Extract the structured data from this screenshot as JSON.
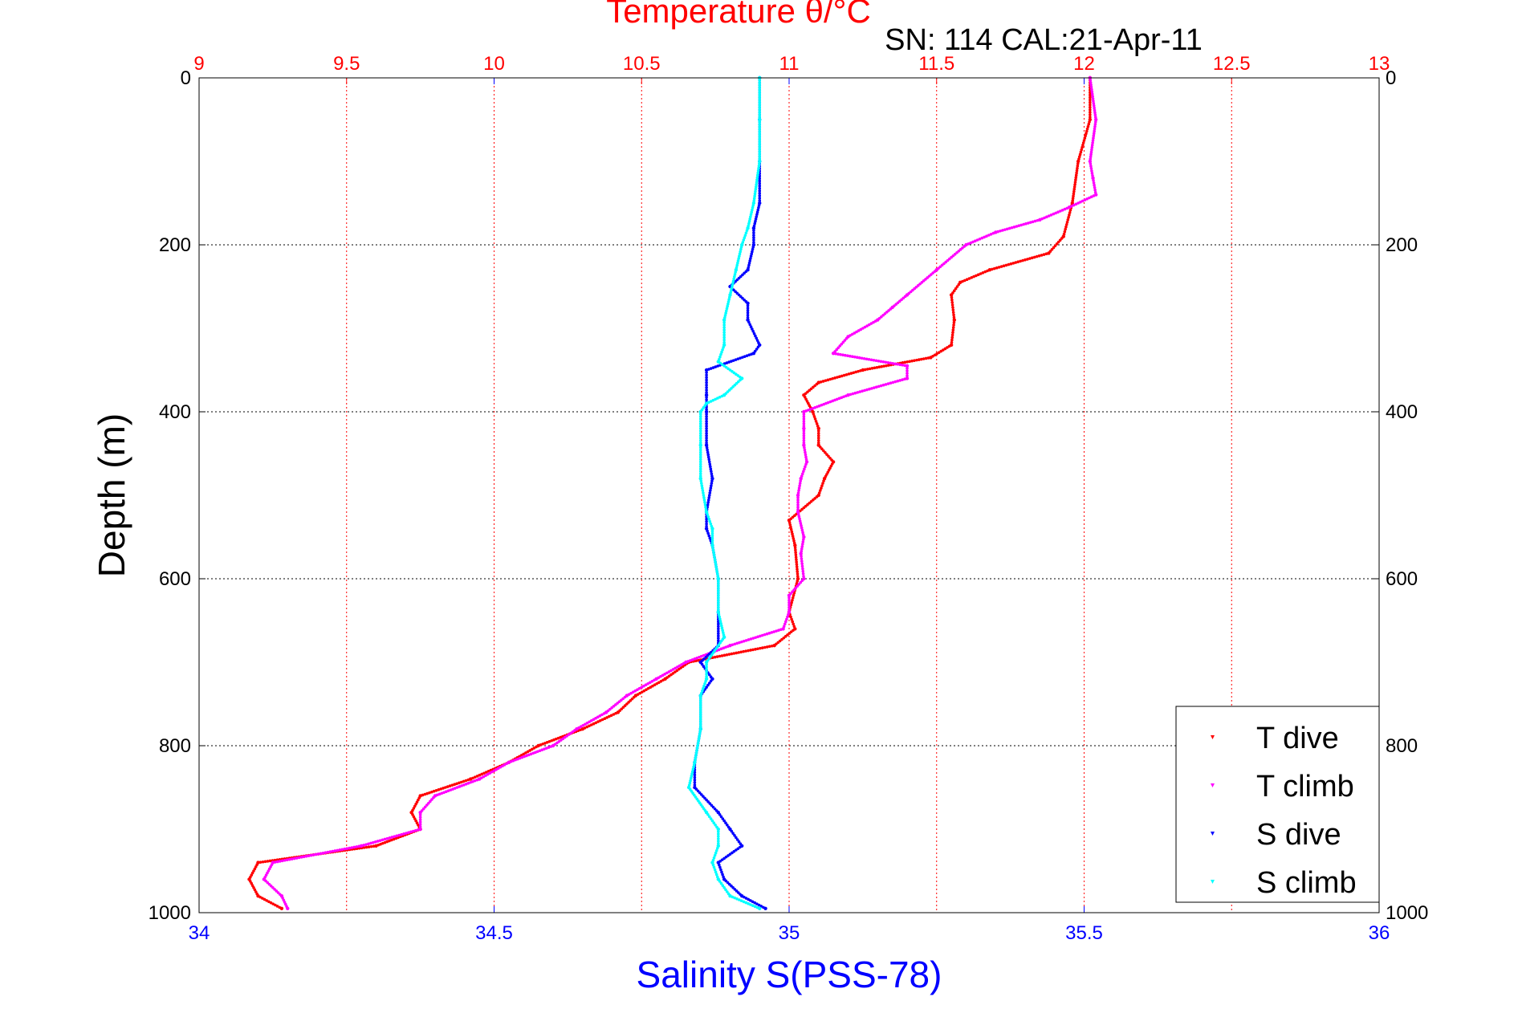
{
  "chart_data": {
    "type": "scatter",
    "title": "Temperature θ/°C",
    "subtitle": "SN: 114  CAL:21-Apr-11",
    "ylabel": "Depth (m)",
    "xlabel_bottom": "Salinity S(PSS-78)",
    "xlabel_top": "Temperature θ/°C",
    "ylim": [
      1000,
      0
    ],
    "xlim_salinity": [
      34,
      36
    ],
    "xlim_temperature": [
      9,
      13
    ],
    "yticks": [
      "0",
      "200",
      "400",
      "600",
      "800",
      "1000"
    ],
    "salinity_ticks": [
      "34",
      "34.5",
      "35",
      "35.5",
      "36"
    ],
    "temperature_ticks": [
      "9",
      "9.5",
      "10",
      "10.5",
      "11",
      "11.5",
      "12",
      "12.5",
      "13"
    ],
    "legend_position": "bottom-right",
    "colors": {
      "temperature_axis": "#ff0000",
      "salinity_axis": "#0000ff",
      "t_dive": "#ff0000",
      "t_climb": "#ff00ff",
      "s_dive": "#0000ff",
      "s_climb": "#00ffff"
    },
    "series": [
      {
        "name": "T dive",
        "axis": "temperature",
        "color": "#ff0000",
        "depth": [
          0,
          50,
          100,
          150,
          190,
          210,
          230,
          245,
          260,
          290,
          320,
          335,
          350,
          365,
          380,
          400,
          420,
          440,
          460,
          480,
          500,
          530,
          560,
          600,
          640,
          660,
          680,
          700,
          720,
          740,
          760,
          780,
          800,
          820,
          840,
          860,
          880,
          900,
          920,
          940,
          960,
          980,
          995
        ],
        "values": [
          12.02,
          12.02,
          11.98,
          11.96,
          11.93,
          11.88,
          11.68,
          11.58,
          11.55,
          11.56,
          11.55,
          11.48,
          11.25,
          11.1,
          11.05,
          11.08,
          11.1,
          11.1,
          11.15,
          11.12,
          11.1,
          11.0,
          11.02,
          11.03,
          11.0,
          11.02,
          10.95,
          10.66,
          10.58,
          10.48,
          10.42,
          10.3,
          10.15,
          10.05,
          9.92,
          9.75,
          9.72,
          9.75,
          9.6,
          9.2,
          9.17,
          9.2,
          9.28
        ]
      },
      {
        "name": "T climb",
        "axis": "temperature",
        "color": "#ff00ff",
        "depth": [
          0,
          50,
          100,
          120,
          140,
          155,
          170,
          185,
          200,
          230,
          260,
          275,
          290,
          310,
          330,
          345,
          360,
          380,
          400,
          420,
          440,
          460,
          480,
          500,
          520,
          550,
          570,
          600,
          620,
          640,
          660,
          680,
          700,
          720,
          740,
          760,
          780,
          800,
          820,
          840,
          860,
          880,
          900,
          920,
          940,
          960,
          980,
          995
        ],
        "values": [
          12.02,
          12.04,
          12.02,
          12.03,
          12.04,
          11.95,
          11.85,
          11.7,
          11.6,
          11.5,
          11.4,
          11.35,
          11.3,
          11.2,
          11.15,
          11.4,
          11.4,
          11.2,
          11.05,
          11.05,
          11.05,
          11.06,
          11.04,
          11.03,
          11.03,
          11.05,
          11.04,
          11.05,
          11.0,
          11.0,
          10.98,
          10.8,
          10.65,
          10.55,
          10.45,
          10.38,
          10.28,
          10.2,
          10.05,
          9.95,
          9.8,
          9.75,
          9.75,
          9.55,
          9.25,
          9.22,
          9.28,
          9.3
        ]
      },
      {
        "name": "S dive",
        "axis": "salinity",
        "color": "#0000ff",
        "depth": [
          0,
          50,
          100,
          150,
          180,
          200,
          230,
          250,
          270,
          290,
          320,
          330,
          350,
          380,
          400,
          440,
          480,
          520,
          540,
          560,
          600,
          640,
          680,
          700,
          720,
          740,
          780,
          820,
          850,
          880,
          900,
          920,
          940,
          960,
          980,
          995
        ],
        "values": [
          34.95,
          34.95,
          34.95,
          34.95,
          34.94,
          34.94,
          34.93,
          34.9,
          34.93,
          34.93,
          34.95,
          34.94,
          34.86,
          34.86,
          34.86,
          34.86,
          34.87,
          34.86,
          34.86,
          34.87,
          34.88,
          34.88,
          34.88,
          34.85,
          34.87,
          34.85,
          34.85,
          34.84,
          34.84,
          34.88,
          34.9,
          34.92,
          34.88,
          34.89,
          34.92,
          34.96
        ]
      },
      {
        "name": "S climb",
        "axis": "salinity",
        "color": "#00ffff",
        "depth": [
          0,
          50,
          100,
          150,
          180,
          200,
          230,
          260,
          290,
          320,
          340,
          360,
          380,
          390,
          400,
          440,
          480,
          520,
          540,
          560,
          600,
          640,
          670,
          700,
          720,
          740,
          780,
          820,
          850,
          880,
          900,
          920,
          940,
          960,
          980,
          995
        ],
        "values": [
          34.95,
          34.95,
          34.95,
          34.94,
          34.93,
          34.92,
          34.91,
          34.9,
          34.89,
          34.89,
          34.88,
          34.92,
          34.89,
          34.86,
          34.85,
          34.85,
          34.85,
          34.86,
          34.87,
          34.87,
          34.88,
          34.88,
          34.89,
          34.86,
          34.86,
          34.85,
          34.85,
          34.84,
          34.83,
          34.86,
          34.88,
          34.88,
          34.87,
          34.88,
          34.9,
          34.95
        ]
      }
    ]
  }
}
